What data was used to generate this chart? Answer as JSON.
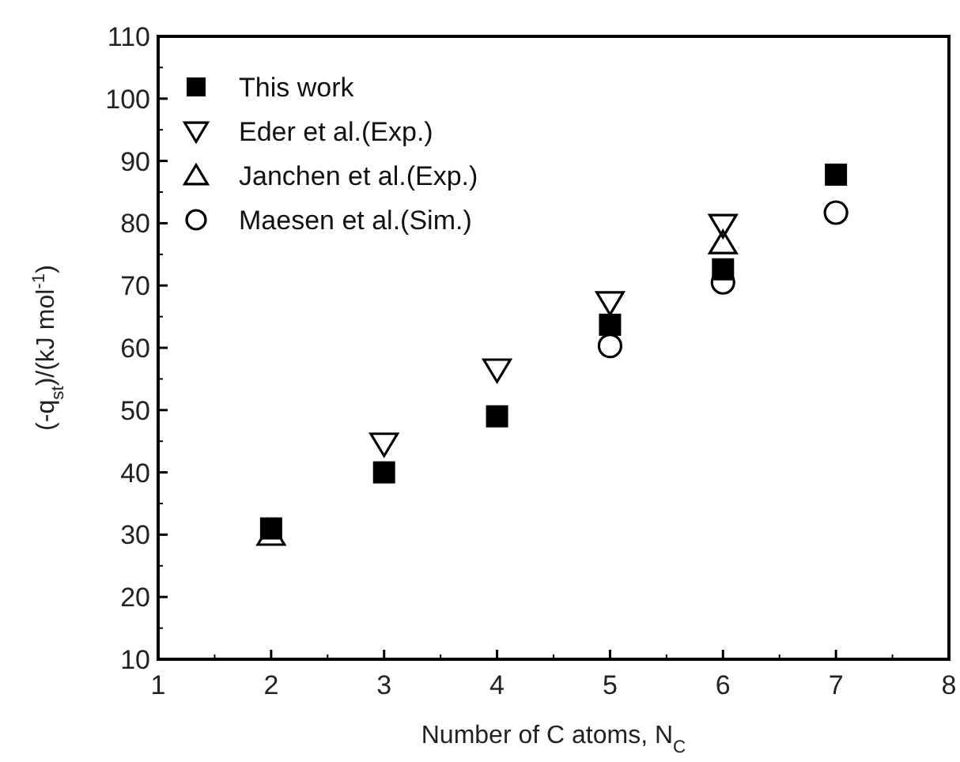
{
  "chart_data": {
    "type": "scatter",
    "xlabel": "Number of C atoms, N$_{C}$",
    "ylabel": "(-q$_{st}$)/(kJ mol$^{-1}$)",
    "xlim": [
      1,
      8
    ],
    "ylim": [
      10,
      110
    ],
    "xticks": [
      1,
      2,
      3,
      4,
      5,
      6,
      7,
      8
    ],
    "yticks": [
      10,
      20,
      30,
      40,
      50,
      60,
      70,
      80,
      90,
      100,
      110
    ],
    "legend": "top left",
    "grid": false,
    "series": [
      {
        "name": "This work",
        "color": "#000000",
        "marker": "square",
        "x": [
          2,
          3,
          4,
          5,
          6,
          7
        ],
        "values": [
          31,
          40,
          49,
          63.7,
          72.6,
          87.8
        ]
      },
      {
        "name": "Eder et al.(Exp.)",
        "color": "#000000",
        "marker": "triangle-down",
        "x": [
          3,
          4,
          5,
          6
        ],
        "values": [
          44.6,
          56.5,
          67.3,
          79.7
        ]
      },
      {
        "name": "Janchen et al.(Exp.)",
        "color": "#000000",
        "marker": "triangle",
        "x": [
          2,
          6
        ],
        "values": [
          30,
          76.8
        ]
      },
      {
        "name": "Maesen et al.(Sim.)",
        "color": "#000000",
        "marker": "circle",
        "x": [
          5,
          6,
          7
        ],
        "values": [
          60.3,
          70.5,
          81.7
        ]
      }
    ]
  }
}
